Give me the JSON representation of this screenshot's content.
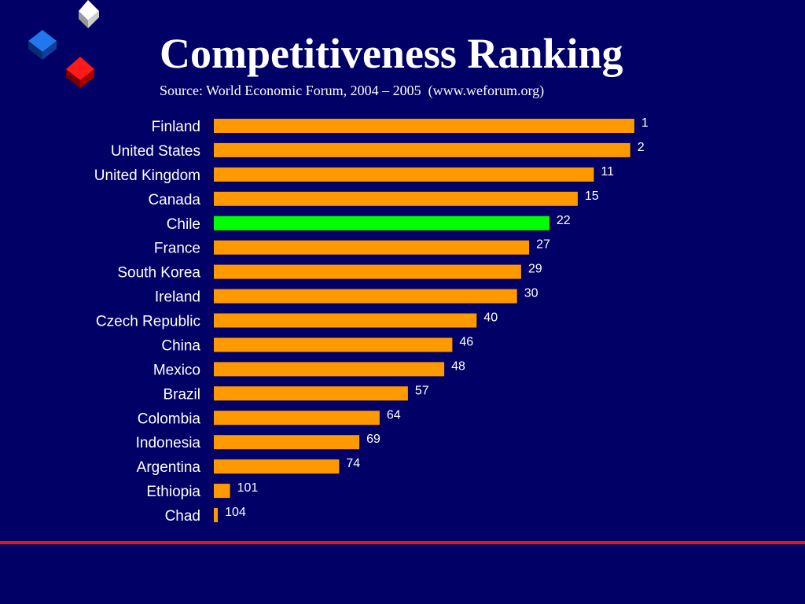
{
  "colors": {
    "background": "#000066",
    "bar": "#ff9900",
    "highlight_bar": "#00ff00",
    "text": "#ffffff",
    "rule": "#ee1111"
  },
  "logo": {
    "icon": "three-cubes-logo-icon",
    "cube_colors": [
      "#ffffff",
      "#1155cc",
      "#dd0000"
    ]
  },
  "header": {
    "title": "Competitiveness Ranking",
    "subtitle": "Source: World Economic Forum, 2004 – 2005  (www.weforum.org)"
  },
  "chart_data": {
    "type": "bar",
    "orientation": "horizontal",
    "title": "Competitiveness Ranking",
    "subtitle": "Source: World Economic Forum, 2004 – 2005  (www.weforum.org)",
    "xlabel": "",
    "ylabel": "",
    "categories": [
      "Finland",
      "United States",
      "United Kingdom",
      "Canada",
      "Chile",
      "France",
      "South Korea",
      "Ireland",
      "Czech Republic",
      "China",
      "Mexico",
      "Brazil",
      "Colombia",
      "Indonesia",
      "Argentina",
      "Ethiopia",
      "Chad"
    ],
    "values": [
      1,
      2,
      11,
      15,
      22,
      27,
      29,
      30,
      40,
      46,
      48,
      57,
      64,
      69,
      74,
      101,
      104
    ],
    "data_labels": [
      "1",
      "2",
      "11",
      "15",
      "22",
      "27",
      "29",
      "30",
      "40",
      "46",
      "48",
      "57",
      "64",
      "69",
      "74",
      "101",
      "104"
    ],
    "highlight": "Chile",
    "scale": "rank (lower rank = longer bar)",
    "xlim": [
      105,
      0
    ],
    "grid": false,
    "legend": false
  }
}
